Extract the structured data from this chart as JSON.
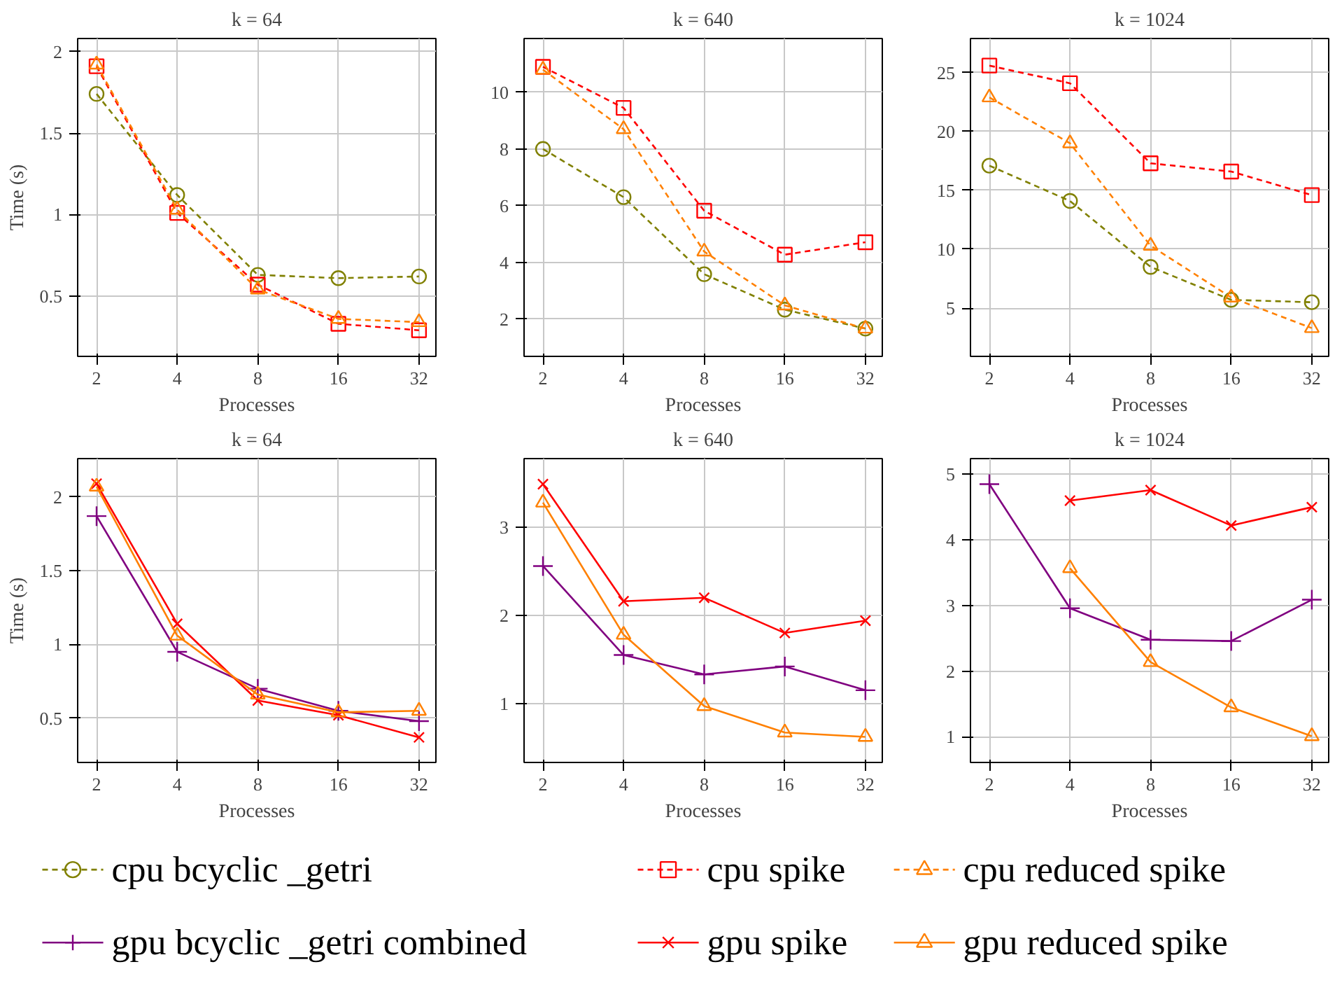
{
  "chart_data": [
    {
      "type": "line",
      "title": "k = 64",
      "xlabel": "Processes",
      "ylabel": "Time (s)",
      "log": "x",
      "x": [
        2,
        4,
        8,
        16,
        32
      ],
      "xlim": [
        1.7,
        37
      ],
      "xticks": [
        2,
        4,
        8,
        16,
        32
      ],
      "ylim": [
        0.13,
        2.08
      ],
      "yticks": [
        0.5,
        1,
        1.5,
        2
      ],
      "grid": true,
      "legend": "bottom",
      "line_style": "dashed",
      "series": [
        {
          "name": "cpu bcyclic _getri",
          "color": "#808000",
          "marker": "circle",
          "values": [
            1.74,
            1.12,
            0.63,
            0.61,
            0.62
          ]
        },
        {
          "name": "cpu spike",
          "color": "#ff0000",
          "marker": "square",
          "values": [
            1.91,
            1.01,
            0.57,
            0.33,
            0.29
          ]
        },
        {
          "name": "cpu reduced spike",
          "color": "#ff8000",
          "marker": "triangle",
          "values": [
            1.92,
            1.03,
            0.54,
            0.36,
            0.34
          ]
        }
      ]
    },
    {
      "type": "line",
      "title": "k = 640",
      "xlabel": "Processes",
      "log": "x",
      "x": [
        2,
        4,
        8,
        16,
        32
      ],
      "xlim": [
        1.7,
        37
      ],
      "xticks": [
        2,
        4,
        8,
        16,
        32
      ],
      "ylim": [
        0.68,
        11.9
      ],
      "yticks": [
        2,
        4,
        6,
        8,
        10
      ],
      "grid": true,
      "line_style": "dashed",
      "series": [
        {
          "color": "#808000",
          "marker": "circle",
          "values": [
            8.0,
            6.3,
            3.58,
            2.33,
            1.66
          ]
        },
        {
          "color": "#ff0000",
          "marker": "square",
          "values": [
            10.9,
            9.45,
            5.82,
            4.27,
            4.71
          ]
        },
        {
          "color": "#ff8000",
          "marker": "triangle",
          "values": [
            10.8,
            8.7,
            4.38,
            2.48,
            1.66
          ]
        }
      ]
    },
    {
      "type": "line",
      "title": "k = 1024",
      "xlabel": "Processes",
      "log": "x",
      "x": [
        2,
        4,
        8,
        16,
        32
      ],
      "xlim": [
        1.7,
        37
      ],
      "xticks": [
        2,
        4,
        8,
        16,
        32
      ],
      "ylim": [
        0.9,
        27.9
      ],
      "yticks": [
        5,
        10,
        15,
        20,
        25
      ],
      "grid": true,
      "line_style": "dashed",
      "series": [
        {
          "color": "#808000",
          "marker": "circle",
          "values": [
            17.1,
            14.1,
            8.5,
            5.7,
            5.5
          ]
        },
        {
          "color": "#ff0000",
          "marker": "square",
          "values": [
            25.6,
            24.1,
            17.3,
            16.6,
            14.6
          ]
        },
        {
          "color": "#ff8000",
          "marker": "triangle",
          "values": [
            22.9,
            19.0,
            10.3,
            5.9,
            3.3
          ]
        }
      ]
    },
    {
      "type": "line",
      "title": "k = 64",
      "xlabel": "Processes",
      "ylabel": "Time (s)",
      "log": "x",
      "x": [
        2,
        4,
        8,
        16,
        32
      ],
      "xlim": [
        1.7,
        37
      ],
      "xticks": [
        2,
        4,
        8,
        16,
        32
      ],
      "ylim": [
        0.2,
        2.26
      ],
      "yticks": [
        0.5,
        1,
        1.5,
        2
      ],
      "grid": true,
      "legend": "bottom",
      "line_style": "solid",
      "series": [
        {
          "name": "gpu bcyclic _getri combined",
          "color": "#800080",
          "marker": "cross",
          "values": [
            1.87,
            0.95,
            0.7,
            0.55,
            0.48
          ]
        },
        {
          "name": "gpu spike",
          "color": "#ff0000",
          "marker": "x",
          "values": [
            2.09,
            1.14,
            0.62,
            0.52,
            0.37
          ]
        },
        {
          "name": "gpu reduced spike",
          "color": "#ff8000",
          "marker": "triangle",
          "values": [
            2.07,
            1.06,
            0.66,
            0.54,
            0.55
          ]
        }
      ]
    },
    {
      "type": "line",
      "title": "k = 640",
      "xlabel": "Processes",
      "log": "x",
      "x": [
        2,
        4,
        8,
        16,
        32
      ],
      "xlim": [
        1.7,
        37
      ],
      "xticks": [
        2,
        4,
        8,
        16,
        32
      ],
      "ylim": [
        0.33,
        3.78
      ],
      "yticks": [
        1,
        2,
        3
      ],
      "grid": true,
      "line_style": "solid",
      "series": [
        {
          "color": "#800080",
          "marker": "cross",
          "values": [
            2.56,
            1.55,
            1.33,
            1.42,
            1.15
          ]
        },
        {
          "color": "#ff0000",
          "marker": "x",
          "values": [
            3.49,
            2.16,
            2.2,
            1.8,
            1.94
          ]
        },
        {
          "color": "#ff8000",
          "marker": "triangle",
          "values": [
            3.28,
            1.78,
            0.97,
            0.67,
            0.62
          ]
        }
      ]
    },
    {
      "type": "line",
      "title": "k = 1024",
      "xlabel": "Processes",
      "log": "x",
      "x": [
        2,
        4,
        8,
        16,
        32
      ],
      "xlim": [
        1.7,
        37
      ],
      "xticks": [
        2,
        4,
        8,
        16,
        32
      ],
      "ylim": [
        0.61,
        5.24
      ],
      "yticks": [
        1,
        2,
        3,
        4,
        5
      ],
      "grid": true,
      "line_style": "solid",
      "series": [
        {
          "color": "#800080",
          "marker": "cross",
          "values": [
            4.85,
            2.96,
            2.48,
            2.46,
            3.09
          ]
        },
        {
          "color": "#ff0000",
          "marker": "x",
          "values": [
            null,
            4.6,
            4.76,
            4.22,
            4.5
          ]
        },
        {
          "color": "#ff8000",
          "marker": "triangle",
          "values": [
            null,
            3.57,
            2.14,
            1.45,
            1.01
          ]
        }
      ]
    }
  ]
}
